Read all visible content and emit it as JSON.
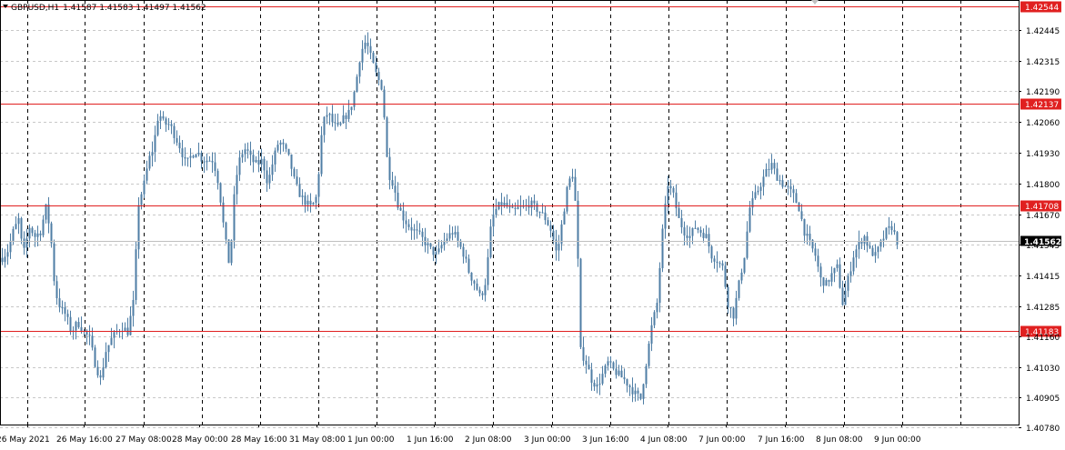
{
  "header": {
    "symbol": "GBPUSD,H1",
    "ohlc": "1.41587 1.41583 1.41497 1.41562"
  },
  "colors": {
    "background": "#ffffff",
    "grid": "#c8c8c8",
    "candle": "#4f7ea5",
    "level_line": "#e02020",
    "current_price_box": "#000000",
    "text": "#000000"
  },
  "chart_data": {
    "type": "candlestick",
    "symbol": "GBPUSD",
    "timeframe": "H1",
    "ylim": [
      1.4078,
      1.4258
    ],
    "grid": true,
    "y_ticks": [
      "1.42445",
      "1.42315",
      "1.42190",
      "1.42060",
      "1.41930",
      "1.41800",
      "1.41670",
      "1.41545",
      "1.41415",
      "1.41285",
      "1.41160",
      "1.41030",
      "1.40905",
      "1.40780"
    ],
    "x_ticks": [
      "26 May 2021",
      "26 May 16:00",
      "27 May 08:00",
      "28 May 00:00",
      "28 May 16:00",
      "31 May 08:00",
      "1 Jun 00:00",
      "1 Jun 16:00",
      "2 Jun 08:00",
      "3 Jun 00:00",
      "3 Jun 16:00",
      "4 Jun 08:00",
      "7 Jun 00:00",
      "7 Jun 16:00",
      "8 Jun 08:00",
      "9 Jun 00:00"
    ],
    "horizontal_levels": [
      {
        "price": 1.42544,
        "label": "1.42544"
      },
      {
        "price": 1.42137,
        "label": "1.42137"
      },
      {
        "price": 1.41708,
        "label": "1.41708"
      },
      {
        "price": 1.41183,
        "label": "1.41183"
      }
    ],
    "current_price": {
      "price": 1.41562,
      "label": "1.41562"
    },
    "close_path": [
      [
        0,
        1.4148
      ],
      [
        8,
        1.4152
      ],
      [
        14,
        1.416
      ],
      [
        20,
        1.4165
      ],
      [
        25,
        1.415
      ],
      [
        32,
        1.4162
      ],
      [
        38,
        1.4158
      ],
      [
        44,
        1.416
      ],
      [
        50,
        1.417
      ],
      [
        55,
        1.416
      ],
      [
        60,
        1.4135
      ],
      [
        66,
        1.4128
      ],
      [
        72,
        1.4125
      ],
      [
        78,
        1.4118
      ],
      [
        85,
        1.4122
      ],
      [
        92,
        1.4118
      ],
      [
        98,
        1.4115
      ],
      [
        104,
        1.4105
      ],
      [
        110,
        1.4098
      ],
      [
        116,
        1.411
      ],
      [
        122,
        1.4115
      ],
      [
        128,
        1.4118
      ],
      [
        134,
        1.412
      ],
      [
        140,
        1.4118
      ],
      [
        146,
        1.413
      ],
      [
        152,
        1.4172
      ],
      [
        158,
        1.418
      ],
      [
        163,
        1.419
      ],
      [
        168,
        1.4195
      ],
      [
        174,
        1.421
      ],
      [
        180,
        1.4205
      ],
      [
        186,
        1.4205
      ],
      [
        192,
        1.42
      ],
      [
        198,
        1.4195
      ],
      [
        204,
        1.4188
      ],
      [
        210,
        1.4192
      ],
      [
        216,
        1.4194
      ],
      [
        222,
        1.419
      ],
      [
        228,
        1.419
      ],
      [
        234,
        1.419
      ],
      [
        240,
        1.418
      ],
      [
        246,
        1.416
      ],
      [
        252,
        1.4145
      ],
      [
        258,
        1.418
      ],
      [
        264,
        1.4192
      ],
      [
        270,
        1.4195
      ],
      [
        276,
        1.419
      ],
      [
        282,
        1.4188
      ],
      [
        288,
        1.419
      ],
      [
        294,
        1.418
      ],
      [
        300,
        1.419
      ],
      [
        306,
        1.4198
      ],
      [
        312,
        1.4195
      ],
      [
        318,
        1.419
      ],
      [
        324,
        1.418
      ],
      [
        330,
        1.4175
      ],
      [
        336,
        1.4172
      ],
      [
        342,
        1.417
      ],
      [
        348,
        1.4175
      ],
      [
        354,
        1.4205
      ],
      [
        360,
        1.421
      ],
      [
        366,
        1.4205
      ],
      [
        372,
        1.4203
      ],
      [
        378,
        1.4208
      ],
      [
        384,
        1.421
      ],
      [
        390,
        1.422
      ],
      [
        396,
        1.4235
      ],
      [
        402,
        1.424
      ],
      [
        408,
        1.4232
      ],
      [
        414,
        1.4225
      ],
      [
        420,
        1.422
      ],
      [
        426,
        1.4185
      ],
      [
        432,
        1.418
      ],
      [
        438,
        1.417
      ],
      [
        444,
        1.4165
      ],
      [
        450,
        1.4162
      ],
      [
        456,
        1.416
      ],
      [
        462,
        1.4158
      ],
      [
        468,
        1.4155
      ],
      [
        474,
        1.4152
      ],
      [
        480,
        1.415
      ],
      [
        486,
        1.4155
      ],
      [
        492,
        1.4158
      ],
      [
        498,
        1.416
      ],
      [
        504,
        1.4155
      ],
      [
        510,
        1.415
      ],
      [
        516,
        1.4142
      ],
      [
        522,
        1.4138
      ],
      [
        528,
        1.4132
      ],
      [
        534,
        1.414
      ],
      [
        540,
        1.4165
      ],
      [
        546,
        1.417
      ],
      [
        552,
        1.4172
      ],
      [
        558,
        1.417
      ],
      [
        564,
        1.4168
      ],
      [
        570,
        1.417
      ],
      [
        576,
        1.417
      ],
      [
        582,
        1.4172
      ],
      [
        588,
        1.417
      ],
      [
        594,
        1.4168
      ],
      [
        600,
        1.4165
      ],
      [
        606,
        1.416
      ],
      [
        612,
        1.415
      ],
      [
        618,
        1.4165
      ],
      [
        624,
        1.418
      ],
      [
        630,
        1.4185
      ],
      [
        634,
        1.416
      ],
      [
        638,
        1.411
      ],
      [
        644,
        1.4105
      ],
      [
        650,
        1.4098
      ],
      [
        656,
        1.4095
      ],
      [
        662,
        1.41
      ],
      [
        668,
        1.4105
      ],
      [
        674,
        1.4102
      ],
      [
        680,
        1.41
      ],
      [
        686,
        1.4098
      ],
      [
        692,
        1.4095
      ],
      [
        698,
        1.4092
      ],
      [
        704,
        1.409
      ],
      [
        710,
        1.4105
      ],
      [
        716,
        1.412
      ],
      [
        722,
        1.413
      ],
      [
        728,
        1.416
      ],
      [
        734,
        1.418
      ],
      [
        740,
        1.4175
      ],
      [
        746,
        1.4165
      ],
      [
        752,
        1.416
      ],
      [
        758,
        1.4158
      ],
      [
        764,
        1.4162
      ],
      [
        770,
        1.416
      ],
      [
        776,
        1.4158
      ],
      [
        782,
        1.415
      ],
      [
        788,
        1.4148
      ],
      [
        794,
        1.4145
      ],
      [
        800,
        1.413
      ],
      [
        806,
        1.4125
      ],
      [
        812,
        1.4138
      ],
      [
        818,
        1.415
      ],
      [
        824,
        1.417
      ],
      [
        830,
        1.4175
      ],
      [
        836,
        1.418
      ],
      [
        842,
        1.4185
      ],
      [
        848,
        1.4188
      ],
      [
        854,
        1.4183
      ],
      [
        860,
        1.418
      ],
      [
        866,
        1.4178
      ],
      [
        872,
        1.4175
      ],
      [
        878,
        1.417
      ],
      [
        884,
        1.416
      ],
      [
        890,
        1.4155
      ],
      [
        896,
        1.415
      ],
      [
        902,
        1.414
      ],
      [
        908,
        1.4138
      ],
      [
        914,
        1.4142
      ],
      [
        920,
        1.4145
      ],
      [
        926,
        1.413
      ],
      [
        932,
        1.414
      ],
      [
        938,
        1.415
      ],
      [
        944,
        1.4155
      ],
      [
        950,
        1.4158
      ],
      [
        956,
        1.4152
      ],
      [
        962,
        1.415
      ],
      [
        968,
        1.4155
      ],
      [
        974,
        1.416
      ],
      [
        980,
        1.4162
      ],
      [
        986,
        1.4156
      ]
    ]
  }
}
